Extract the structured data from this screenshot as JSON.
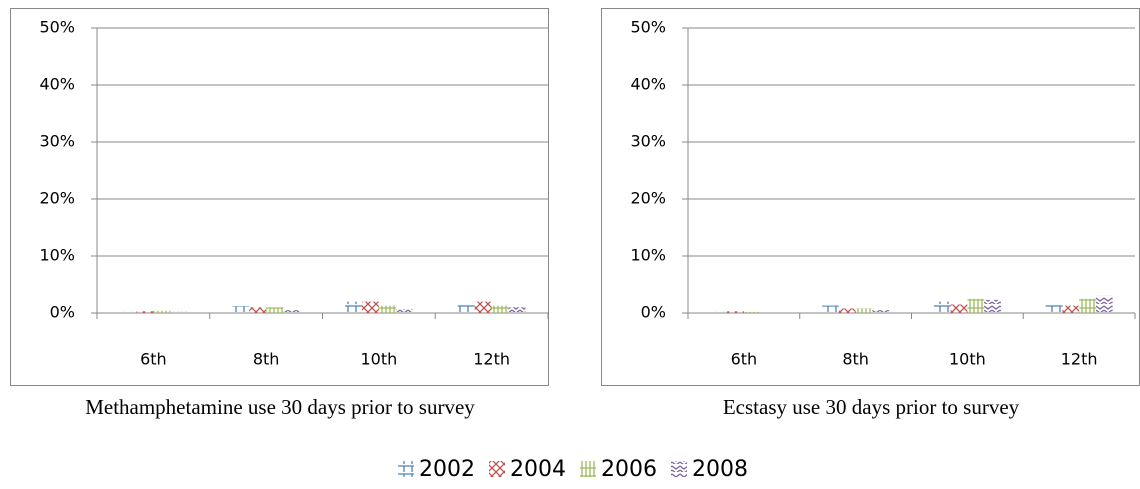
{
  "chart_data": [
    {
      "type": "bar",
      "title": "Methamphetamine use 30 days prior to survey",
      "categories": [
        "6th",
        "8th",
        "10th",
        "12th"
      ],
      "series": [
        {
          "name": "2002",
          "color": "#4f81bd",
          "values": [
            0.2,
            1.2,
            2.0,
            1.5
          ]
        },
        {
          "name": "2004",
          "color": "#c0504d",
          "values": [
            0.3,
            1.0,
            2.0,
            2.0
          ]
        },
        {
          "name": "2006",
          "color": "#9bbb59",
          "values": [
            0.4,
            1.0,
            1.3,
            1.3
          ]
        },
        {
          "name": "2008",
          "color": "#8064a2",
          "values": [
            0.2,
            0.5,
            0.7,
            1.0
          ]
        }
      ],
      "ylim": [
        0,
        50
      ],
      "yticks": [
        {
          "value": 0,
          "label": "0%"
        },
        {
          "value": 10,
          "label": "10%"
        },
        {
          "value": 20,
          "label": "20%"
        },
        {
          "value": 30,
          "label": "30%"
        },
        {
          "value": 40,
          "label": "40%"
        },
        {
          "value": 50,
          "label": "50%"
        }
      ],
      "grid": true
    },
    {
      "type": "bar",
      "title": "Ecstasy use 30 days prior to survey",
      "categories": [
        "6th",
        "8th",
        "10th",
        "12th"
      ],
      "series": [
        {
          "name": "2002",
          "color": "#4f81bd",
          "values": [
            0.2,
            1.3,
            2.0,
            1.5
          ]
        },
        {
          "name": "2004",
          "color": "#c0504d",
          "values": [
            0.3,
            0.8,
            1.5,
            1.3
          ]
        },
        {
          "name": "2006",
          "color": "#9bbb59",
          "values": [
            0.2,
            0.8,
            2.5,
            2.5
          ]
        },
        {
          "name": "2008",
          "color": "#8064a2",
          "values": [
            0.1,
            0.5,
            2.3,
            3.0
          ]
        }
      ],
      "ylim": [
        0,
        50
      ],
      "yticks": [
        {
          "value": 0,
          "label": "0%"
        },
        {
          "value": 10,
          "label": "10%"
        },
        {
          "value": 20,
          "label": "20%"
        },
        {
          "value": 30,
          "label": "30%"
        },
        {
          "value": 40,
          "label": "40%"
        },
        {
          "value": 50,
          "label": "50%"
        }
      ],
      "grid": true
    }
  ]
}
